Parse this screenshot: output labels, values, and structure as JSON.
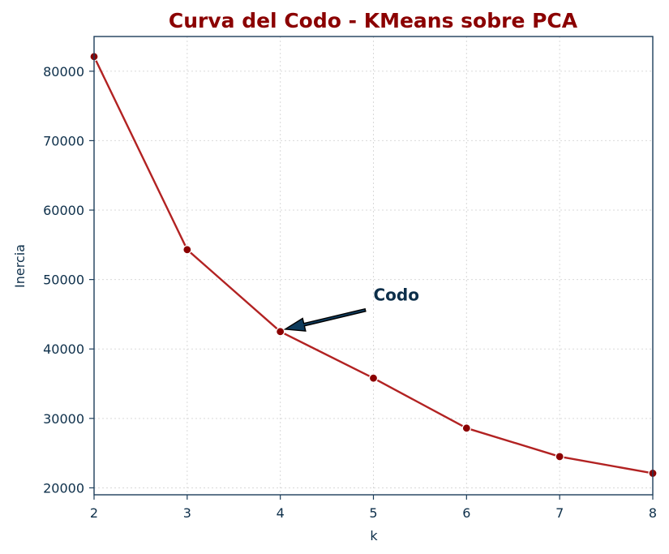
{
  "chart_data": {
    "type": "line",
    "title": "Curva del Codo - KMeans sobre PCA",
    "xlabel": "k",
    "ylabel": "Inercia",
    "xlim": [
      2,
      8
    ],
    "ylim": [
      19000,
      85000
    ],
    "x_ticks": [
      2,
      3,
      4,
      5,
      6,
      7,
      8
    ],
    "y_ticks": [
      20000,
      30000,
      40000,
      50000,
      60000,
      70000,
      80000
    ],
    "grid": true,
    "series": [
      {
        "x": [
          2,
          3,
          4,
          5,
          6,
          7,
          8
        ],
        "values": [
          82100,
          54300,
          42500,
          35800,
          28600,
          24500,
          22100
        ]
      }
    ],
    "annotation": {
      "text": "Codo",
      "point": [
        4,
        42500
      ],
      "text_position": [
        5,
        47000
      ]
    },
    "colors": {
      "title": "#8b0000",
      "line": "#b22222",
      "marker": "#8b0000",
      "axes": "#1c3d5a",
      "text": "#0d2f4a",
      "annotation_text": "#0d2f4a",
      "arrow_fill": "#0e3b5c",
      "grid": "#d9d9d9"
    }
  }
}
